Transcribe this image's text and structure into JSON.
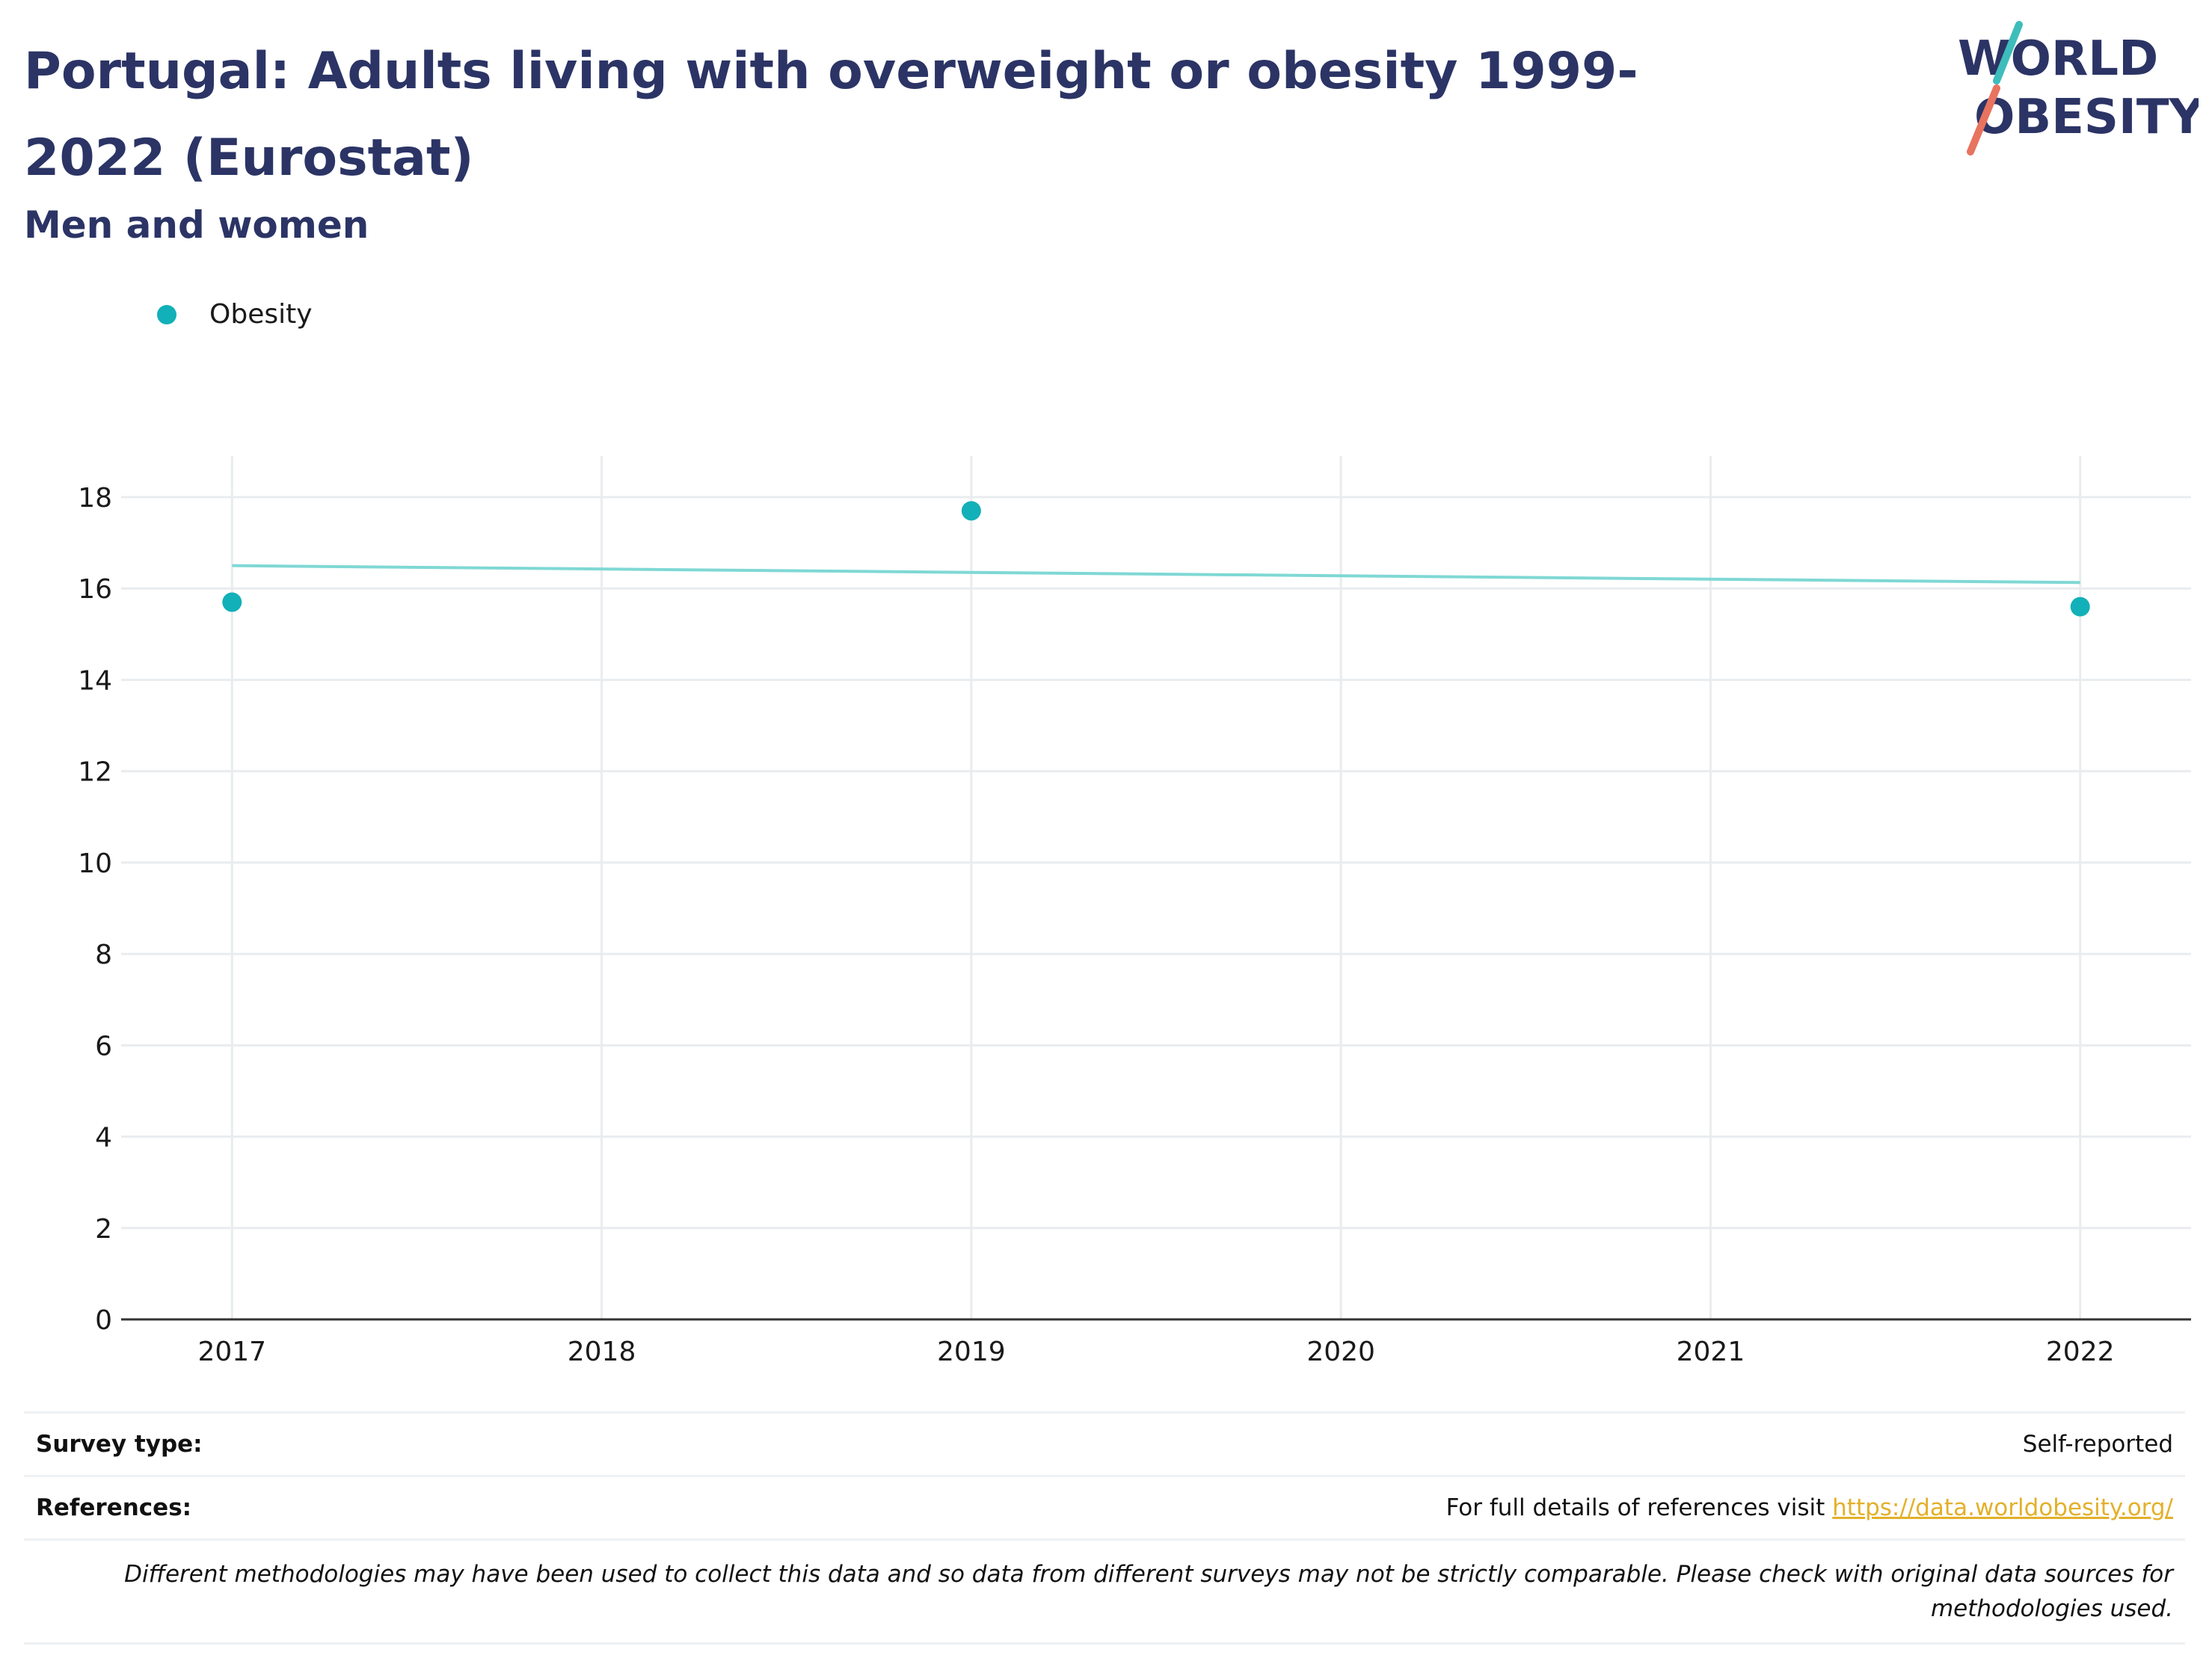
{
  "header": {
    "title": "Portugal: Adults living with overweight or obesity 1999-2022 (Eurostat)",
    "subtitle": "Men and women"
  },
  "logo": {
    "line1": "WORLD",
    "line2": "OBESITY"
  },
  "colors": {
    "title": "#2b3465",
    "series": "#12b0b8",
    "trend": "#7fd8d4",
    "logo_teal": "#3dbdbb",
    "logo_coral": "#e8735f",
    "link": "#e3b02a"
  },
  "legend": [
    {
      "label": "Obesity",
      "marker": "circle-dot"
    }
  ],
  "chart_data": {
    "type": "scatter",
    "x": [
      2017,
      2019,
      2022
    ],
    "series": [
      {
        "name": "Obesity",
        "values": [
          15.7,
          17.7,
          15.6
        ]
      }
    ],
    "trendline": {
      "x": [
        2017,
        2022
      ],
      "y": [
        16.5,
        16.13
      ]
    },
    "x_ticks": [
      "2017",
      "2018",
      "2019",
      "2020",
      "2021",
      "2022"
    ],
    "y_ticks": [
      "0",
      "2",
      "4",
      "6",
      "8",
      "10",
      "12",
      "14",
      "16",
      "18"
    ],
    "xlim": [
      2016.7,
      2022.3
    ],
    "ylim": [
      0,
      18.9
    ],
    "grid": true,
    "legend_position": "top-left"
  },
  "footer": {
    "survey_type_label": "Survey type:",
    "survey_type_value": "Self-reported",
    "references_label": "References:",
    "references_text": "For full details of references visit ",
    "references_link": "https://data.worldobesity.org/",
    "note": "Different methodologies may have been used to collect this data and so data from different surveys may not be strictly comparable. Please check with original data sources for methodologies used."
  }
}
